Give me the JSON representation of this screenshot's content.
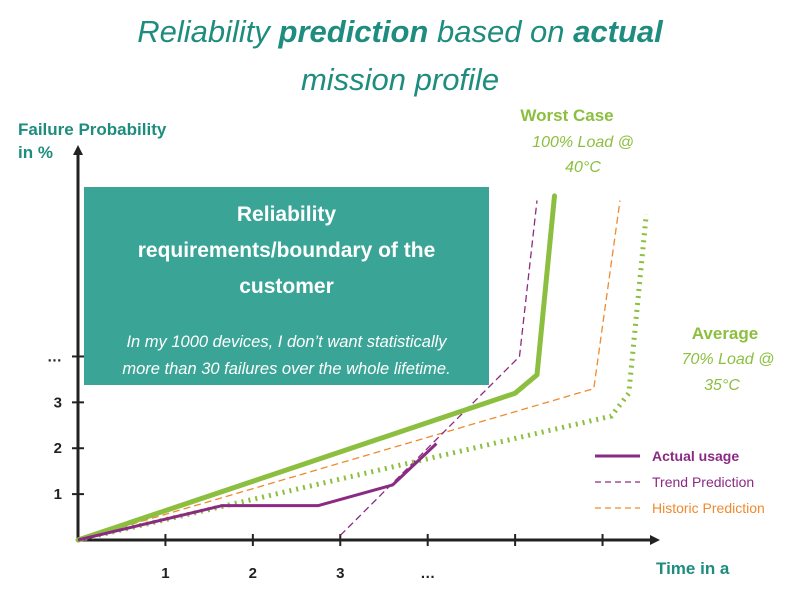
{
  "title": {
    "line1": [
      {
        "text": "Reliability ",
        "bold": false
      },
      {
        "text": "prediction",
        "bold": true
      },
      {
        "text": " based on ",
        "bold": false
      },
      {
        "text": "actual",
        "bold": true
      }
    ],
    "line2": "mission profile"
  },
  "requirements_box": {
    "heading_lines": [
      "Reliability",
      "requirements/boundary of the",
      "customer"
    ],
    "text_lines": [
      "In my 1000 devices, I don’t want statistically",
      "more than 30 failures over the whole lifetime."
    ]
  },
  "annotations": {
    "worst_case": {
      "title": "Worst Case",
      "lines": [
        "100% Load @",
        "40°C"
      ]
    },
    "average": {
      "title": "Average",
      "lines": [
        "70% Load @",
        "35°C"
      ]
    }
  },
  "colors": {
    "title": "#1e8c7e",
    "worst": "#8cbf3f",
    "average": "#8cbf3f",
    "actual": "#8b2a82",
    "trend": "#8b2a82",
    "historic": "#ef8a2e",
    "box": "#3aa597"
  },
  "chart_data": {
    "type": "line",
    "xlabel": "Time in a",
    "ylabel_lines": [
      "Failure Probability",
      "in %"
    ],
    "x_ticks": [
      1,
      2,
      3,
      4,
      5,
      6
    ],
    "x_tick_labels": [
      "1",
      "2",
      "3",
      "…",
      "",
      ""
    ],
    "y_ticks": [
      1,
      2,
      3,
      4
    ],
    "y_tick_labels": [
      "1",
      "2",
      "3",
      "…"
    ],
    "xlim": [
      0,
      6.6
    ],
    "ylim": [
      0,
      8.5
    ],
    "series": [
      {
        "name": "Worst Case",
        "style": "solid-thick",
        "points": [
          [
            0,
            0
          ],
          [
            5.0,
            3.2
          ],
          [
            5.25,
            3.6
          ],
          [
            5.45,
            7.5
          ]
        ]
      },
      {
        "name": "Average",
        "style": "dotted-thick",
        "points": [
          [
            0,
            0
          ],
          [
            6.1,
            2.7
          ],
          [
            6.3,
            3.2
          ],
          [
            6.5,
            7.1
          ]
        ]
      },
      {
        "name": "Actual usage",
        "style": "solid",
        "points": [
          [
            0,
            0
          ],
          [
            1.65,
            0.75
          ],
          [
            2.75,
            0.75
          ],
          [
            3.6,
            1.2
          ],
          [
            4.1,
            2.1
          ]
        ]
      },
      {
        "name": "Trend Prediction",
        "style": "dashed",
        "points": [
          [
            3.0,
            0.1
          ],
          [
            5.05,
            4.0
          ],
          [
            5.25,
            7.4
          ]
        ]
      },
      {
        "name": "Historic Prediction",
        "style": "dashed",
        "points": [
          [
            0,
            0
          ],
          [
            5.9,
            3.3
          ],
          [
            6.2,
            7.4
          ]
        ]
      }
    ],
    "legend": {
      "position": "bottom-right",
      "entries": [
        "Actual usage",
        "Trend Prediction",
        "Historic Prediction"
      ]
    }
  }
}
